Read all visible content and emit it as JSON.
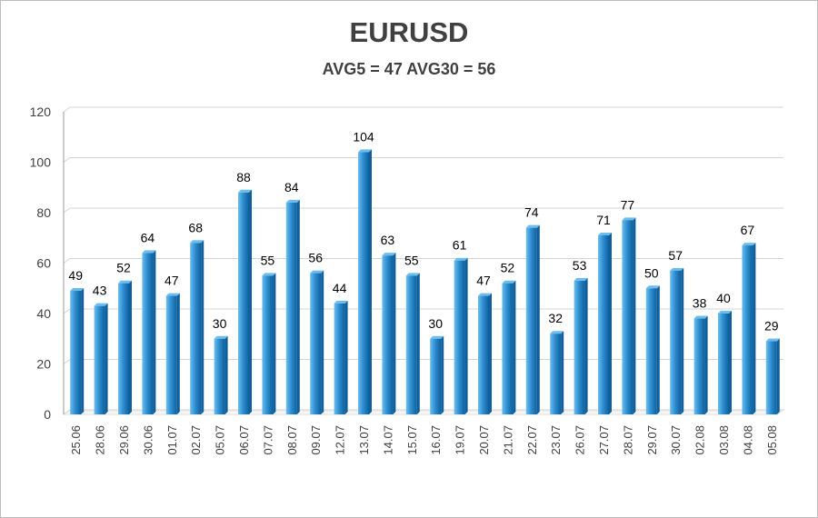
{
  "chart_data": {
    "type": "bar",
    "title": "EURUSD",
    "subtitle": "AVG5 = 47 AVG30 = 56",
    "xlabel": "",
    "ylabel": "",
    "ylim": [
      0,
      120
    ],
    "yticks": [
      0,
      20,
      40,
      60,
      80,
      100,
      120
    ],
    "grid": true,
    "categories": [
      "25.06",
      "28.06",
      "29.06",
      "30.06",
      "01.07",
      "02.07",
      "05.07",
      "06.07",
      "07.07",
      "08.07",
      "09.07",
      "12.07",
      "13.07",
      "14.07",
      "15.07",
      "16.07",
      "19.07",
      "20.07",
      "21.07",
      "22.07",
      "23.07",
      "26.07",
      "27.07",
      "28.07",
      "29.07",
      "30.07",
      "02.08",
      "03.08",
      "04.08",
      "05.08"
    ],
    "values": [
      49,
      43,
      52,
      64,
      47,
      68,
      30,
      88,
      55,
      84,
      56,
      44,
      104,
      63,
      55,
      30,
      61,
      47,
      52,
      74,
      32,
      53,
      71,
      77,
      50,
      57,
      38,
      40,
      67,
      29
    ],
    "colors": {
      "bar_light": "#6cbdee",
      "bar_mid": "#2e8fd1",
      "bar_dark": "#0e5f9c",
      "grid": "#d4d4d4",
      "axis": "#9a9a9a"
    }
  }
}
